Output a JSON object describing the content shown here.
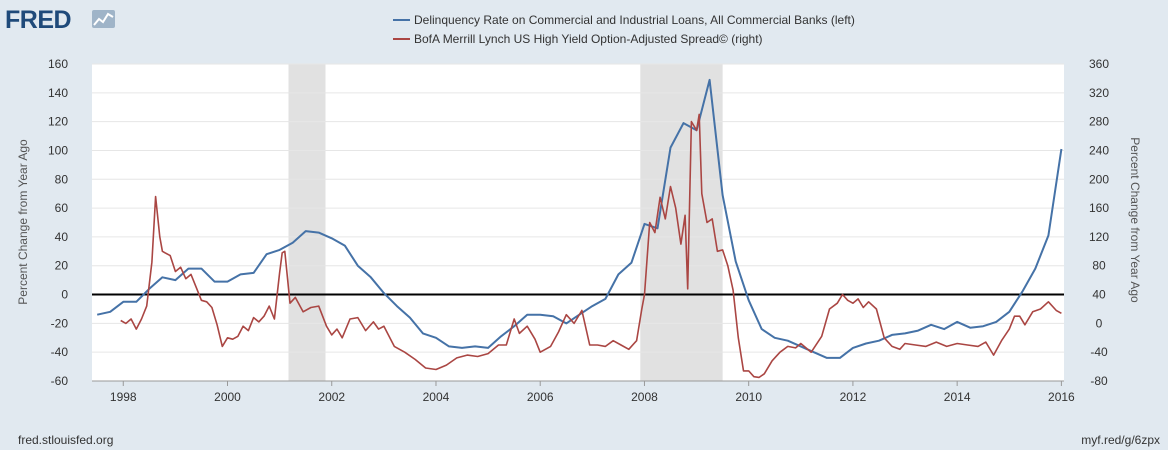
{
  "header": {
    "logo_text": "FRED",
    "logo_icon": "chart-line-icon",
    "legend": [
      {
        "label": "Delinquency Rate on Commercial and Industrial Loans, All Commercial Banks (left)",
        "color": "#4572a7"
      },
      {
        "label": "BofA Merrill Lynch US High Yield Option-Adjusted Spread© (right)",
        "color": "#aa4643"
      }
    ]
  },
  "footer": {
    "source": "fred.stlouisfed.org",
    "short_url": "myf.red/g/6zpx"
  },
  "colors": {
    "background": "#e1e9f0",
    "plot_area": "#ffffff",
    "recession": "#e1e1e1",
    "grid": "#e6e6e6",
    "zero_line": "#000000"
  },
  "chart_data": {
    "type": "line",
    "xlabel": "",
    "ylabel_left": "Percent Change from Year Ago",
    "ylabel_right": "Percent Change from Year Ago",
    "x_ticks": [
      1998,
      2000,
      2002,
      2004,
      2006,
      2008,
      2010,
      2012,
      2014,
      2016
    ],
    "x_range": [
      1997.4,
      2016.05
    ],
    "y_left_ticks": [
      -60,
      -40,
      -20,
      0,
      20,
      40,
      60,
      80,
      100,
      120,
      140,
      160
    ],
    "y_left_range": [
      -60,
      160
    ],
    "y_right_ticks": [
      -80,
      -40,
      0,
      40,
      80,
      120,
      160,
      200,
      240,
      280,
      320,
      360
    ],
    "y_right_range": [
      -80,
      360
    ],
    "grid": true,
    "recessions": [
      [
        2001.17,
        2001.88
      ],
      [
        2007.92,
        2009.5
      ]
    ],
    "series": [
      {
        "name": "Delinquency Rate on Commercial and Industrial Loans, All Commercial Banks (left)",
        "axis": "left",
        "color": "#4572a7",
        "x": [
          1997.5,
          1997.75,
          1998.0,
          1998.25,
          1998.5,
          1998.75,
          1999.0,
          1999.25,
          1999.5,
          1999.75,
          2000.0,
          2000.25,
          2000.5,
          2000.75,
          2001.0,
          2001.25,
          2001.5,
          2001.75,
          2002.0,
          2002.25,
          2002.5,
          2002.75,
          2003.0,
          2003.25,
          2003.5,
          2003.75,
          2004.0,
          2004.25,
          2004.5,
          2004.75,
          2005.0,
          2005.25,
          2005.5,
          2005.75,
          2006.0,
          2006.25,
          2006.5,
          2006.75,
          2007.0,
          2007.25,
          2007.5,
          2007.75,
          2008.0,
          2008.25,
          2008.5,
          2008.75,
          2009.0,
          2009.25,
          2009.5,
          2009.75,
          2010.0,
          2010.25,
          2010.5,
          2010.75,
          2011.0,
          2011.25,
          2011.5,
          2011.75,
          2012.0,
          2012.25,
          2012.5,
          2012.75,
          2013.0,
          2013.25,
          2013.5,
          2013.75,
          2014.0,
          2014.25,
          2014.5,
          2014.75,
          2015.0,
          2015.25,
          2015.5,
          2015.75,
          2016.0
        ],
        "values": [
          -14,
          -12,
          -5,
          -5,
          4,
          12,
          10,
          18,
          18,
          9,
          9,
          14,
          15,
          28,
          31,
          36,
          44,
          43,
          39,
          34,
          20,
          12,
          1,
          -8,
          -16,
          -27,
          -30,
          -36,
          -37,
          -36,
          -37,
          -29,
          -22,
          -14,
          -14,
          -15,
          -20,
          -14,
          -8,
          -3,
          14,
          22,
          49,
          46,
          102,
          119,
          114,
          149,
          69,
          23,
          -4,
          -24,
          -30,
          -32,
          -36,
          -40,
          -44,
          -44,
          -37,
          -34,
          -32,
          -28,
          -27,
          -25,
          -21,
          -24,
          -19,
          -23,
          -22,
          -19,
          -12,
          2,
          18,
          41,
          101
        ]
      },
      {
        "name": "BofA Merrill Lynch US High Yield Option-Adjusted Spread© (right)",
        "axis": "right",
        "color": "#aa4643",
        "x": [
          1997.95,
          1998.05,
          1998.15,
          1998.25,
          1998.35,
          1998.45,
          1998.55,
          1998.62,
          1998.7,
          1998.75,
          1998.8,
          1998.9,
          1999.0,
          1999.1,
          1999.2,
          1999.3,
          1999.4,
          1999.5,
          1999.6,
          1999.7,
          1999.8,
          1999.9,
          2000.0,
          2000.1,
          2000.2,
          2000.3,
          2000.4,
          2000.5,
          2000.6,
          2000.7,
          2000.8,
          2000.9,
          2001.0,
          2001.05,
          2001.1,
          2001.2,
          2001.3,
          2001.45,
          2001.6,
          2001.75,
          2001.9,
          2002.0,
          2002.1,
          2002.2,
          2002.35,
          2002.5,
          2002.65,
          2002.8,
          2002.9,
          2003.0,
          2003.2,
          2003.4,
          2003.6,
          2003.8,
          2004.0,
          2004.2,
          2004.4,
          2004.6,
          2004.8,
          2005.0,
          2005.2,
          2005.35,
          2005.5,
          2005.6,
          2005.75,
          2005.9,
          2006.0,
          2006.2,
          2006.35,
          2006.5,
          2006.65,
          2006.8,
          2006.95,
          2007.1,
          2007.25,
          2007.4,
          2007.55,
          2007.7,
          2007.85,
          2007.95,
          2008.0,
          2008.1,
          2008.2,
          2008.3,
          2008.4,
          2008.5,
          2008.6,
          2008.7,
          2008.78,
          2008.83,
          2008.9,
          2009.0,
          2009.05,
          2009.1,
          2009.2,
          2009.3,
          2009.4,
          2009.5,
          2009.6,
          2009.7,
          2009.8,
          2009.9,
          2010.0,
          2010.1,
          2010.2,
          2010.3,
          2010.45,
          2010.6,
          2010.75,
          2010.9,
          2011.0,
          2011.2,
          2011.4,
          2011.55,
          2011.7,
          2011.8,
          2011.9,
          2012.0,
          2012.1,
          2012.2,
          2012.3,
          2012.45,
          2012.6,
          2012.75,
          2012.9,
          2013.0,
          2013.2,
          2013.4,
          2013.6,
          2013.8,
          2014.0,
          2014.2,
          2014.4,
          2014.55,
          2014.7,
          2014.85,
          2015.0,
          2015.1,
          2015.2,
          2015.3,
          2015.45,
          2015.6,
          2015.75,
          2015.9,
          2016.0
        ],
        "values": [
          4,
          0,
          6,
          -8,
          6,
          24,
          85,
          176,
          120,
          100,
          98,
          94,
          72,
          78,
          62,
          68,
          50,
          32,
          30,
          22,
          -2,
          -32,
          -20,
          -22,
          -18,
          -4,
          -10,
          8,
          2,
          10,
          24,
          6,
          70,
          98,
          100,
          28,
          36,
          16,
          22,
          24,
          -4,
          -16,
          -8,
          -20,
          6,
          8,
          -10,
          2,
          -8,
          -4,
          -32,
          -40,
          -50,
          -62,
          -64,
          -58,
          -48,
          -44,
          -46,
          -42,
          -30,
          -30,
          6,
          -14,
          -4,
          -22,
          -40,
          -32,
          -12,
          12,
          0,
          18,
          -30,
          -30,
          -32,
          -24,
          -30,
          -36,
          -24,
          20,
          40,
          140,
          126,
          175,
          145,
          190,
          160,
          110,
          150,
          48,
          280,
          268,
          290,
          180,
          140,
          145,
          100,
          102,
          80,
          46,
          -20,
          -66,
          -66,
          -74,
          -75,
          -70,
          -52,
          -40,
          -32,
          -34,
          -28,
          -40,
          -18,
          20,
          28,
          40,
          32,
          28,
          34,
          22,
          30,
          20,
          -20,
          -32,
          -36,
          -28,
          -30,
          -32,
          -26,
          -32,
          -28,
          -30,
          -32,
          -26,
          -44,
          -24,
          -8,
          10,
          10,
          -2,
          16,
          20,
          30,
          18,
          14
        ]
      }
    ]
  }
}
